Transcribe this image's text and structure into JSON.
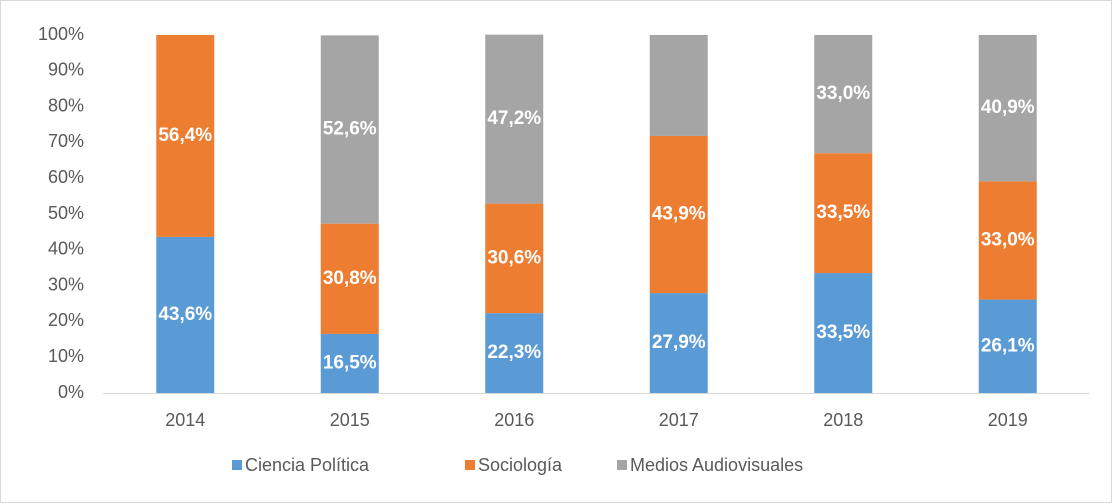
{
  "chart_data": {
    "type": "stacked_bar",
    "categories": [
      "2014",
      "2015",
      "2016",
      "2017",
      "2018",
      "2019"
    ],
    "series": [
      {
        "name": "Ciencia Política",
        "color": "#5b9bd5",
        "values": [
          43.6,
          16.5,
          22.3,
          27.9,
          33.5,
          26.1
        ],
        "value_labels": [
          "43,6%",
          "16,5%",
          "22,3%",
          "27,9%",
          "33,5%",
          "26,1%"
        ]
      },
      {
        "name": "Sociología",
        "color": "#ed7d31",
        "values": [
          56.4,
          30.8,
          30.6,
          43.9,
          33.5,
          33.0
        ],
        "value_labels": [
          "56,4%",
          "30,8%",
          "30,6%",
          "43,9%",
          "33,5%",
          "33,0%"
        ]
      },
      {
        "name": "Medios Audiovisuales",
        "color": "#a5a5a5",
        "values": [
          0,
          52.6,
          47.2,
          28.2,
          33.0,
          40.9
        ],
        "value_labels": [
          null,
          "52,6%",
          "47,2%",
          null,
          "33,0%",
          "40,9%"
        ]
      }
    ],
    "ylim": [
      0,
      100
    ],
    "yticks": [
      {
        "value": 0,
        "label": "0%"
      },
      {
        "value": 10,
        "label": "10%"
      },
      {
        "value": 20,
        "label": "20%"
      },
      {
        "value": 30,
        "label": "30%"
      },
      {
        "value": 40,
        "label": "40%"
      },
      {
        "value": 50,
        "label": "50%"
      },
      {
        "value": 60,
        "label": "60%"
      },
      {
        "value": 70,
        "label": "70%"
      },
      {
        "value": 80,
        "label": "80%"
      },
      {
        "value": 90,
        "label": "90%"
      },
      {
        "value": 100,
        "label": "100%"
      }
    ],
    "legend": "bottom"
  }
}
